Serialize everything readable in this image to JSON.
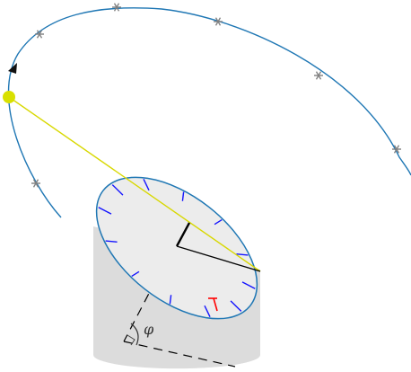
{
  "diagram": {
    "angle_label": "φ",
    "colors": {
      "orbit": "#1f77b4",
      "sun": "#d8e000",
      "sun_ray": "#d8d800",
      "markers": "#808080",
      "dial_face": "#ececec",
      "dial_rim": "#1f77b4",
      "hour_ticks": "#1414ff",
      "noon_mark": "#ff0000",
      "cylinder": "#dcdcdc",
      "gnomon": "#000000",
      "dashed_axis": "#000000"
    },
    "hour_tick_count": 12,
    "orbit_marker_count": 6,
    "icons": {
      "sun": "sun-icon",
      "direction": "arrow-head-icon",
      "marker": "asterisk-icon"
    }
  }
}
